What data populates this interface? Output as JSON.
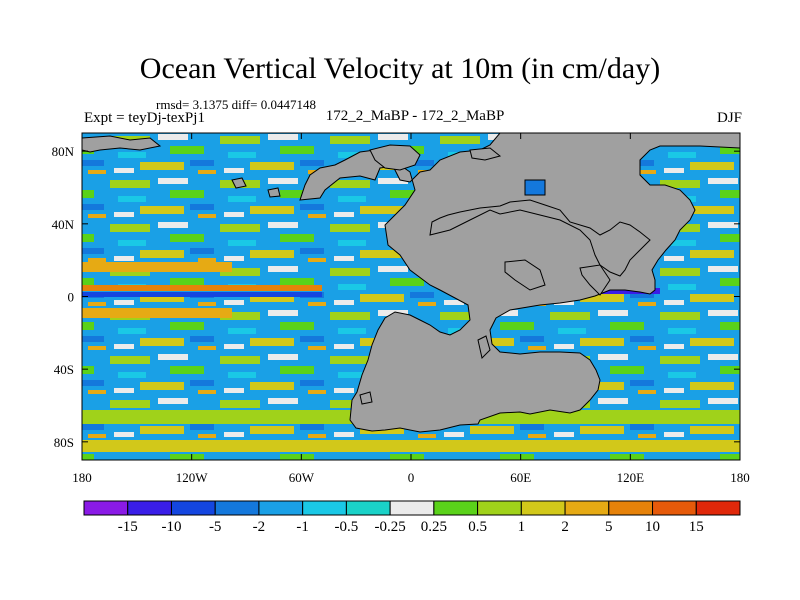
{
  "title": "Ocean Vertical Velocity at 10m (in cm/day)",
  "stats": "rmsd= 3.1375 diff= 0.0447148",
  "experiment": "Expt = teyDj-texPj1",
  "comparison": "172_2_MaBP - 172_2_MaBP",
  "season": "DJF",
  "axes": {
    "x_ticks": [
      {
        "lon": -180,
        "label": "180"
      },
      {
        "lon": -120,
        "label": "120W"
      },
      {
        "lon": -60,
        "label": "60W"
      },
      {
        "lon": 0,
        "label": "0"
      },
      {
        "lon": 60,
        "label": "60E"
      },
      {
        "lon": 120,
        "label": "120E"
      },
      {
        "lon": 180,
        "label": "180"
      }
    ],
    "y_ticks": [
      {
        "lat": 80,
        "label": "80N"
      },
      {
        "lat": 40,
        "label": "40N"
      },
      {
        "lat": 0,
        "label": "0"
      },
      {
        "lat": -40,
        "label": "40S"
      },
      {
        "lat": -80,
        "label": "80S"
      }
    ],
    "lon_range": [
      -180,
      180
    ],
    "lat_range": [
      -90,
      90
    ]
  },
  "colorbar": {
    "colors": [
      "#8a1ae6",
      "#3a1ee8",
      "#1446e0",
      "#1478dc",
      "#1aa0e6",
      "#1ac8e6",
      "#1ad2c8",
      "#ebebeb",
      "#5ad21a",
      "#a0d21a",
      "#d2c81a",
      "#e6aa14",
      "#e6820a",
      "#e65a0a",
      "#e0280a"
    ],
    "labels": [
      "-15",
      "-10",
      "-5",
      "-2",
      "-1",
      "-0.5",
      "-0.25",
      "0.25",
      "0.5",
      "1",
      "2",
      "5",
      "10",
      "15"
    ]
  },
  "legend_colors": {
    "land": "#a0a0a0",
    "frame": "#000000"
  }
}
